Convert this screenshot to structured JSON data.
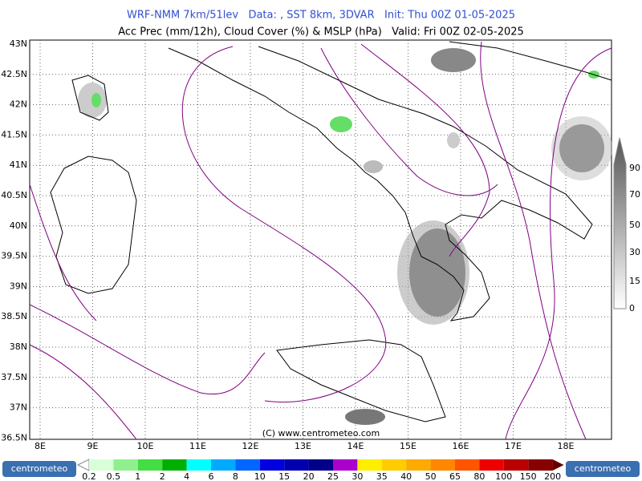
{
  "header": {
    "line1": "WRF-NMM 7km/51lev   Data: , SST 8km, 3DVAR   Init: Thu 00Z 01-05-2025",
    "line2": "Acc Prec (mm/12h), Cloud Cover (%) & MSLP (hPa)   Valid: Fri 00Z 02-05-2025"
  },
  "map": {
    "lat_labels": [
      "43N",
      "42.5N",
      "42N",
      "41.5N",
      "41N",
      "40.5N",
      "40N",
      "39.5N",
      "39N",
      "38.5N",
      "38N",
      "37.5N",
      "37N",
      "36.5N"
    ],
    "lon_labels": [
      "8E",
      "9E",
      "10E",
      "11E",
      "12E",
      "13E",
      "14E",
      "15E",
      "16E",
      "17E",
      "18E"
    ],
    "copyright": "(C) www.centrometeo.com"
  },
  "cloud_legend": {
    "labels": [
      "90",
      "70",
      "50",
      "30",
      "15",
      "0"
    ]
  },
  "precip_legend": {
    "labels": [
      "0.2",
      "0.5",
      "1",
      "2",
      "4",
      "6",
      "8",
      "10",
      "15",
      "20",
      "25",
      "30",
      "35",
      "40",
      "50",
      "65",
      "80",
      "100",
      "150",
      "200"
    ],
    "colors": [
      "#d8ffd8",
      "#90f090",
      "#44dd44",
      "#00b000",
      "#00ffff",
      "#00aaff",
      "#0066ff",
      "#0000e0",
      "#0000b0",
      "#000088",
      "#aa00cc",
      "#ffee00",
      "#ffcc00",
      "#ffaa00",
      "#ff8800",
      "#ff5500",
      "#ee0000",
      "#bb0000",
      "#880000"
    ]
  },
  "logos": [
    "centrometeo",
    "centrometeo"
  ]
}
